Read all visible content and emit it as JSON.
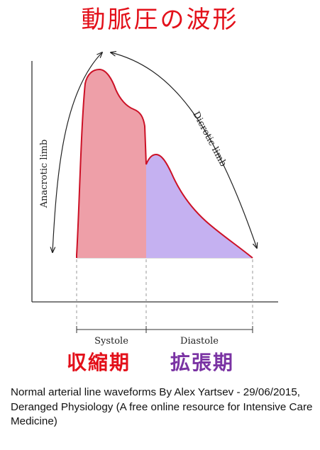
{
  "title": "動脈圧の波形",
  "labels": {
    "anacrotic_limb": "Anacrotic limb",
    "dicrotic_limb": "Dicrotic limb",
    "systole": "Systole",
    "diastole": "Diastole",
    "systole_jp": "収縮期",
    "diastole_jp": "拡張期"
  },
  "caption": "Normal arterial line waveforms By Alex Yartsev - 29/06/2015, Deranged Physiology (A free online resource for Intensive Care Medicine)",
  "colors": {
    "title": "#e3101a",
    "systole_fill": "#ee9fa8",
    "diastole_fill": "#c5b1f1",
    "waveform_stroke": "#cc1126",
    "systole_label": "#e3101a",
    "diastole_label": "#7a33a3"
  }
}
